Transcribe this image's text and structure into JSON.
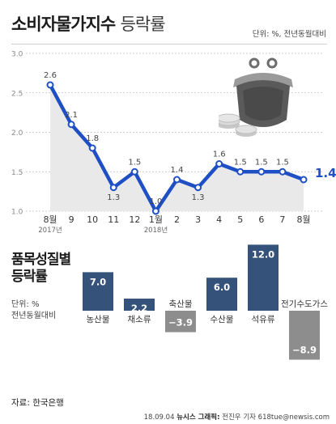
{
  "header": {
    "title_main": "소비자물가지수",
    "title_sub": "등락률",
    "unit": "단위: %, 전년동월대비"
  },
  "chart_data": [
    {
      "type": "line",
      "title": "소비자물가지수 등락률",
      "unit": "단위: %, 전년동월대비",
      "x": [
        "8월",
        "9",
        "10",
        "11",
        "12",
        "1월",
        "2",
        "3",
        "4",
        "5",
        "6",
        "7",
        "8월"
      ],
      "year_labels": [
        "2017년",
        "2018년"
      ],
      "ylim": [
        1.0,
        3.0
      ],
      "yticks": [
        "3.0",
        "2.5",
        "2.0",
        "1.5",
        "1.0"
      ],
      "series": [
        {
          "values": [
            2.6,
            2.1,
            1.8,
            1.3,
            1.5,
            1.0,
            1.4,
            1.3,
            1.6,
            1.5,
            1.5,
            1.5,
            1.4
          ]
        }
      ],
      "data_labels": [
        "2.6",
        "2.1",
        "1.8",
        "1.3",
        "1.5",
        "1.0",
        "1.4",
        "1.3",
        "1.6",
        "1.5",
        "1.5",
        "1.5",
        "1.4"
      ],
      "last_label": "1.4",
      "last_label_unit": "%",
      "grid": true
    },
    {
      "type": "bar",
      "title": "품목성질별 등락률",
      "unit_line1": "단위: %",
      "unit_line2": "전년동월대비",
      "categories": [
        "농산물",
        "채소류",
        "축산물",
        "수산물",
        "석유류",
        "전기수도가스"
      ],
      "values": [
        7.0,
        2.2,
        -3.9,
        6.0,
        12.0,
        -8.9
      ],
      "value_labels": [
        "7.0",
        "2.2",
        "−3.9",
        "6.0",
        "12.0",
        "−8.9"
      ]
    }
  ],
  "colors": {
    "line": "#1e4fc4",
    "marker_fill": "#ffffff",
    "positive_bar": "#34527a",
    "negative_bar": "#8d8d8d",
    "area_fill": "#e9e9e9",
    "highlight": "#1e4fc4"
  },
  "bar_section": {
    "title_line1": "품목성질별",
    "title_line2": "등락률",
    "unit_line1": "단위: %",
    "unit_line2": "전년동월대비"
  },
  "footer": {
    "source": "자료: 한국은행",
    "credit_date": "18.09.04",
    "credit_org": "뉴시스 그래픽:",
    "credit_author": "전진우 기자 618tue@newsis.com"
  },
  "icons": {
    "illustration": "coin-purse-icon"
  }
}
